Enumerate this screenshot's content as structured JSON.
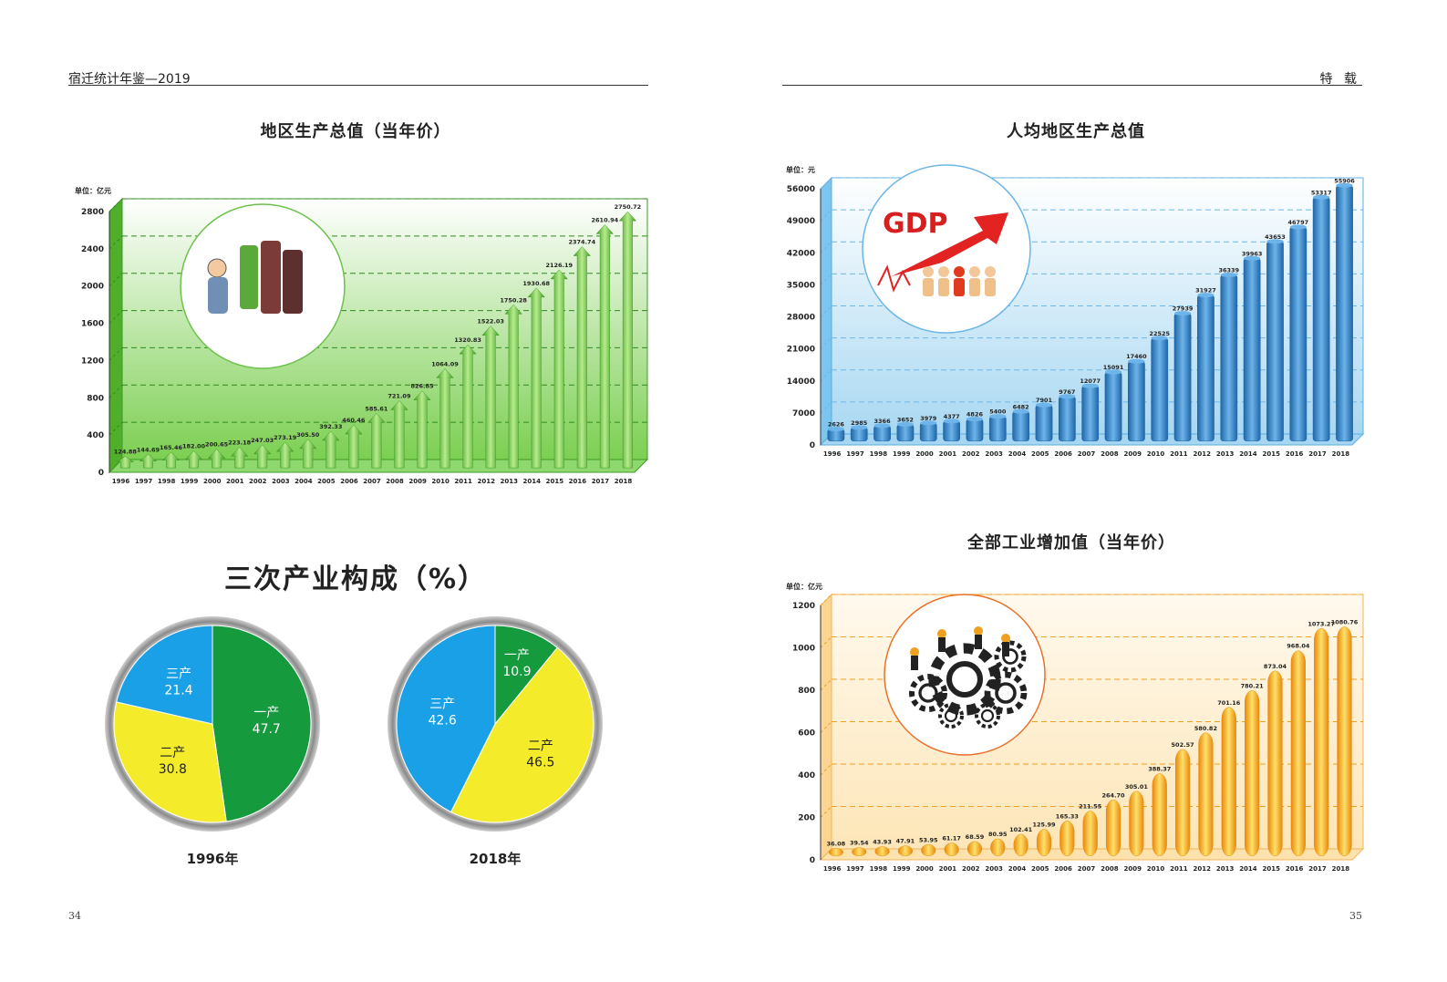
{
  "header": {
    "left_title": "宿迁统计年鉴—2019",
    "right_title": "特 载"
  },
  "page_numbers": {
    "left": "34",
    "right": "35"
  },
  "colors": {
    "gdp_bar": "#5fae32",
    "gdp_panel": "#7ccf52",
    "percap_bar": "#2b7fc4",
    "percap_panel": "#a9d8f2",
    "ind_bar": "#f2a21b",
    "ind_panel": "#fde6b8",
    "pie_primary": "#159a3e",
    "pie_secondary": "#f4ec2a",
    "pie_tertiary": "#1aa0e6"
  },
  "chart_data": [
    {
      "id": "gdp",
      "type": "bar",
      "title": "地区生产总值（当年价）",
      "unit_label": "单位：亿元",
      "categories": [
        "1996",
        "1997",
        "1998",
        "1999",
        "2000",
        "2001",
        "2002",
        "2003",
        "2004",
        "2005",
        "2006",
        "2007",
        "2008",
        "2009",
        "2010",
        "2011",
        "2012",
        "2013",
        "2014",
        "2015",
        "2016",
        "2017",
        "2018"
      ],
      "values": [
        124.88,
        144.69,
        165.46,
        182.0,
        200.65,
        223.18,
        247.03,
        273.19,
        305.5,
        392.33,
        460.46,
        585.61,
        721.09,
        826.85,
        1064.09,
        1320.83,
        1522.03,
        1750.28,
        1930.68,
        2126.19,
        2374.74,
        2610.94,
        2750.72
      ],
      "value_labels": [
        "124.88",
        "144.69",
        "165.46",
        "182.00",
        "200.65",
        "223.18",
        "247.03",
        "273.19",
        "305.50",
        "392.33",
        "460.46",
        "585.61",
        "721.09",
        "826.85",
        "1064.09",
        "1320.83",
        "1522.03",
        "1750.28",
        "1930.68",
        "2126.19",
        "2374.74",
        "2610.94",
        "2750.72"
      ],
      "yticks": [
        "0",
        "400",
        "800",
        "1200",
        "1600",
        "2000",
        "2400",
        "2800"
      ],
      "ylim": [
        0,
        2800
      ]
    },
    {
      "id": "percap",
      "type": "bar",
      "title": "人均地区生产总值",
      "unit_label": "单位：元",
      "categories": [
        "1996",
        "1997",
        "1998",
        "1999",
        "2000",
        "2001",
        "2002",
        "2003",
        "2004",
        "2005",
        "2006",
        "2007",
        "2008",
        "2009",
        "2010",
        "2011",
        "2012",
        "2013",
        "2014",
        "2015",
        "2016",
        "2017",
        "2018"
      ],
      "values": [
        2626,
        2985,
        3366,
        3652,
        3979,
        4377,
        4826,
        5400,
        6482,
        7901,
        9767,
        12077,
        15091,
        17460,
        22525,
        27939,
        31927,
        36339,
        39963,
        43653,
        46797,
        53317,
        55906
      ],
      "value_labels": [
        "2626",
        "2985",
        "3366",
        "3652",
        "3979",
        "4377",
        "4826",
        "5400",
        "6482",
        "7901",
        "9767",
        "12077",
        "15091",
        "17460",
        "22525",
        "27939",
        "31927",
        "36339",
        "39963",
        "43653",
        "46797",
        "53317",
        "55906"
      ],
      "yticks": [
        "0",
        "7000",
        "14000",
        "21000",
        "28000",
        "35000",
        "42000",
        "49000",
        "56000"
      ],
      "ylim": [
        0,
        56000
      ]
    },
    {
      "id": "industry",
      "type": "bar",
      "title": "全部工业增加值（当年价）",
      "unit_label": "单位：亿元",
      "categories": [
        "1996",
        "1997",
        "1998",
        "1999",
        "2000",
        "2001",
        "2002",
        "2003",
        "2004",
        "2005",
        "2006",
        "2007",
        "2008",
        "2009",
        "2010",
        "2011",
        "2012",
        "2013",
        "2014",
        "2015",
        "2016",
        "2017",
        "2018"
      ],
      "values": [
        36.08,
        39.54,
        43.93,
        47.91,
        53.95,
        61.17,
        68.59,
        80.95,
        102.41,
        125.99,
        165.33,
        211.55,
        264.7,
        305.01,
        388.37,
        502.57,
        580.82,
        701.16,
        780.21,
        873.04,
        968.04,
        1073.27,
        1080.76
      ],
      "value_labels": [
        "36.08",
        "39.54",
        "43.93",
        "47.91",
        "53.95",
        "61.17",
        "68.59",
        "80.95",
        "102.41",
        "125.99",
        "165.33",
        "211.55",
        "264.70",
        "305.01",
        "388.37",
        "502.57",
        "580.82",
        "701.16",
        "780.21",
        "873.04",
        "968.04",
        "1073.27",
        "1080.76"
      ],
      "yticks": [
        "0",
        "200",
        "400",
        "600",
        "800",
        "1000",
        "1200"
      ],
      "ylim": [
        0,
        1200
      ]
    },
    {
      "id": "structure",
      "type": "pie",
      "title": "三次产业构成（%）",
      "pies": [
        {
          "year_label": "1996年",
          "slices": [
            {
              "name": "一产",
              "value": 47.7,
              "label": "47.7"
            },
            {
              "name": "二产",
              "value": 30.8,
              "label": "30.8"
            },
            {
              "name": "三产",
              "value": 21.4,
              "label": "21.4"
            }
          ]
        },
        {
          "year_label": "2018年",
          "slices": [
            {
              "name": "一产",
              "value": 10.9,
              "label": "10.9"
            },
            {
              "name": "二产",
              "value": 46.5,
              "label": "46.5"
            },
            {
              "name": "三产",
              "value": 42.6,
              "label": "42.6"
            }
          ]
        }
      ]
    }
  ],
  "images": {
    "gdp_circle": "gdp-painter-illustration",
    "percap_circle": "gdp-arrow-people-illustration",
    "industry_circle": "gears-workers-illustration"
  },
  "logo_text": {
    "gdp_logo": "GDP"
  }
}
